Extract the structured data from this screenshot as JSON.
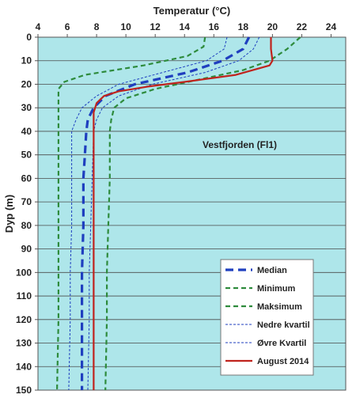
{
  "chart_data": {
    "type": "line",
    "title": "",
    "xlabel": "Temperatur (°C)",
    "ylabel": "Dyp (m)",
    "annotation": "Vestfjorden (Fl1)",
    "xlim": [
      4,
      25
    ],
    "ylim": [
      0,
      150
    ],
    "y_inverted": true,
    "x_axis_position": "top",
    "x_ticks": [
      4,
      6,
      8,
      10,
      12,
      14,
      16,
      18,
      20,
      22,
      24
    ],
    "y_ticks": [
      0,
      10,
      20,
      30,
      40,
      50,
      60,
      70,
      80,
      90,
      100,
      110,
      120,
      130,
      140,
      150
    ],
    "grid": "horizontal",
    "legend_position": "bottom-right",
    "series": [
      {
        "name": "Median",
        "style": "dashed-thick",
        "color": "#1f3fbf",
        "points": [
          [
            18.4,
            0
          ],
          [
            18.0,
            5
          ],
          [
            16.6,
            10
          ],
          [
            14.2,
            15
          ],
          [
            10.6,
            20
          ],
          [
            8.6,
            25
          ],
          [
            7.8,
            30
          ],
          [
            7.4,
            35
          ],
          [
            7.3,
            40
          ],
          [
            7.2,
            50
          ],
          [
            7.1,
            60
          ],
          [
            7.1,
            80
          ],
          [
            7.0,
            100
          ],
          [
            7.0,
            120
          ],
          [
            7.0,
            150
          ]
        ]
      },
      {
        "name": "Minimum",
        "style": "dashed",
        "color": "#2e8b3c",
        "points": [
          [
            15.4,
            0
          ],
          [
            15.3,
            4
          ],
          [
            14.2,
            8
          ],
          [
            11.2,
            12
          ],
          [
            7.2,
            16
          ],
          [
            5.8,
            19
          ],
          [
            5.4,
            22
          ],
          [
            5.4,
            30
          ],
          [
            5.4,
            40
          ],
          [
            5.4,
            60
          ],
          [
            5.4,
            80
          ],
          [
            5.4,
            100
          ],
          [
            5.4,
            120
          ],
          [
            5.3,
            150
          ]
        ]
      },
      {
        "name": "Maksimum",
        "style": "dashed",
        "color": "#2e8b3c",
        "points": [
          [
            21.9,
            0
          ],
          [
            21.0,
            5
          ],
          [
            19.8,
            10
          ],
          [
            18.0,
            14
          ],
          [
            15.0,
            18
          ],
          [
            12.0,
            22
          ],
          [
            10.0,
            26
          ],
          [
            9.2,
            30
          ],
          [
            9.0,
            35
          ],
          [
            8.9,
            40
          ],
          [
            8.9,
            60
          ],
          [
            8.8,
            80
          ],
          [
            8.7,
            100
          ],
          [
            8.7,
            120
          ],
          [
            8.6,
            150
          ]
        ]
      },
      {
        "name": "Nedre kvartil",
        "style": "dotted",
        "color": "#1f3fbf",
        "points": [
          [
            16.9,
            0
          ],
          [
            16.7,
            5
          ],
          [
            15.5,
            10
          ],
          [
            12.5,
            15
          ],
          [
            9.5,
            20
          ],
          [
            8.0,
            25
          ],
          [
            7.0,
            30
          ],
          [
            6.6,
            35
          ],
          [
            6.3,
            40
          ],
          [
            6.3,
            60
          ],
          [
            6.3,
            80
          ],
          [
            6.2,
            100
          ],
          [
            6.2,
            120
          ],
          [
            6.1,
            150
          ]
        ]
      },
      {
        "name": "Øvre Kvartil",
        "style": "dotted",
        "color": "#1f3fbf",
        "points": [
          [
            19.1,
            0
          ],
          [
            18.7,
            5
          ],
          [
            17.7,
            10
          ],
          [
            15.4,
            15
          ],
          [
            11.8,
            20
          ],
          [
            9.5,
            25
          ],
          [
            8.4,
            30
          ],
          [
            8.0,
            35
          ],
          [
            7.8,
            40
          ],
          [
            7.7,
            60
          ],
          [
            7.6,
            80
          ],
          [
            7.5,
            100
          ],
          [
            7.5,
            120
          ],
          [
            7.4,
            150
          ]
        ]
      },
      {
        "name": "August 2014",
        "style": "solid",
        "color": "#c0231d",
        "points": [
          [
            19.9,
            0
          ],
          [
            19.9,
            5
          ],
          [
            20.0,
            10
          ],
          [
            19.8,
            12
          ],
          [
            17.5,
            16
          ],
          [
            14.0,
            19
          ],
          [
            11.5,
            21
          ],
          [
            9.5,
            23
          ],
          [
            8.5,
            25
          ],
          [
            8.0,
            28
          ],
          [
            7.8,
            32
          ],
          [
            7.8,
            40
          ],
          [
            7.8,
            60
          ],
          [
            7.8,
            80
          ],
          [
            7.8,
            100
          ],
          [
            7.8,
            120
          ],
          [
            7.8,
            150
          ]
        ]
      }
    ]
  }
}
